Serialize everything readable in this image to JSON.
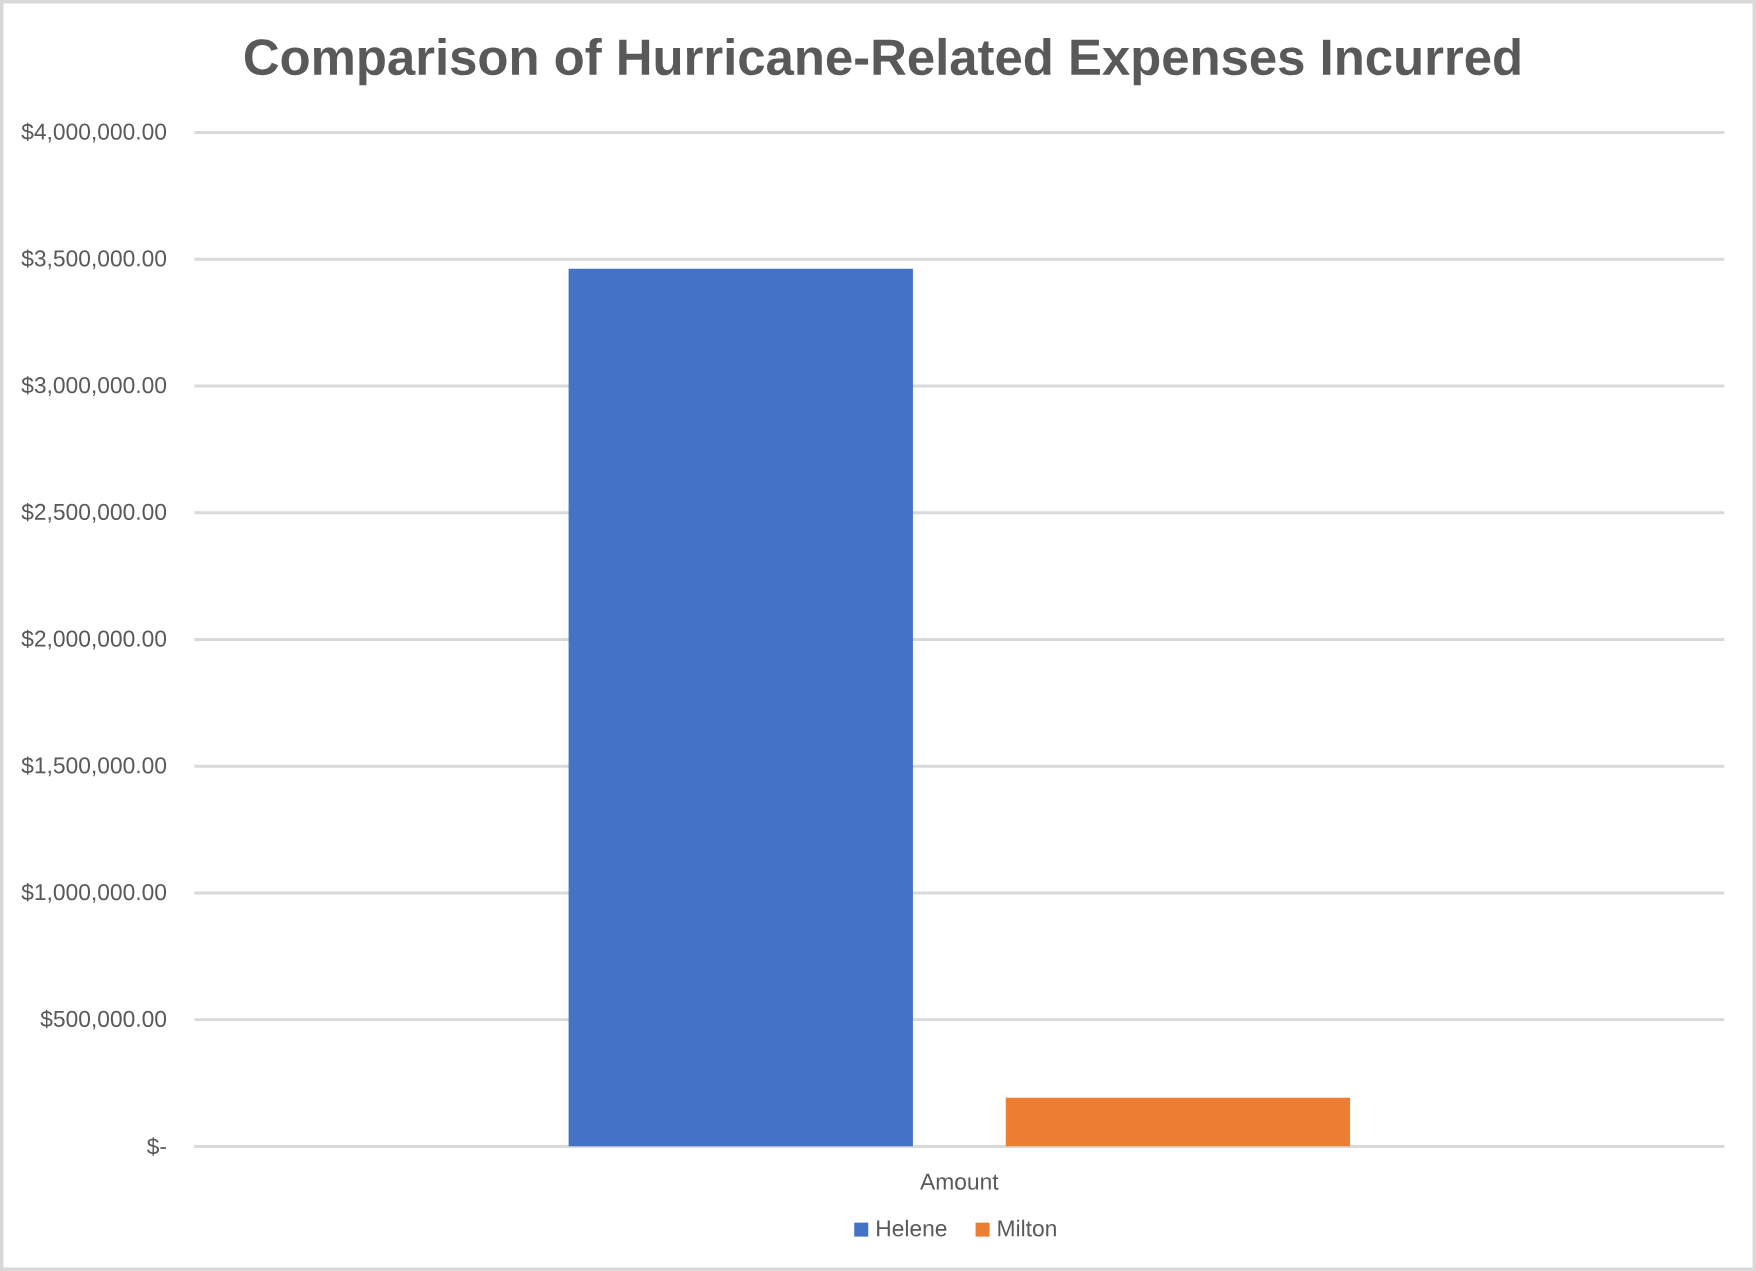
{
  "chart_data": {
    "type": "bar",
    "title": "Comparison of Hurricane-Related Expenses Incurred",
    "categories": [
      "Amount"
    ],
    "series": [
      {
        "name": "Helene",
        "color": "#4472c4",
        "values": [
          3463000
        ]
      },
      {
        "name": "Milton",
        "color": "#ed7d31",
        "values": [
          192000
        ]
      }
    ],
    "ylim": [
      0,
      4000000
    ],
    "yticks": [
      {
        "value": 0,
        "label": "$-"
      },
      {
        "value": 500000,
        "label": "$500,000.00"
      },
      {
        "value": 1000000,
        "label": "$1,000,000.00"
      },
      {
        "value": 1500000,
        "label": "$1,500,000.00"
      },
      {
        "value": 2000000,
        "label": "$2,000,000.00"
      },
      {
        "value": 2500000,
        "label": "$2,500,000.00"
      },
      {
        "value": 3000000,
        "label": "$3,000,000.00"
      },
      {
        "value": 3500000,
        "label": "$3,500,000.00"
      },
      {
        "value": 4000000,
        "label": "$4,000,000.00"
      }
    ],
    "grid": "y",
    "legend": "bottom"
  }
}
